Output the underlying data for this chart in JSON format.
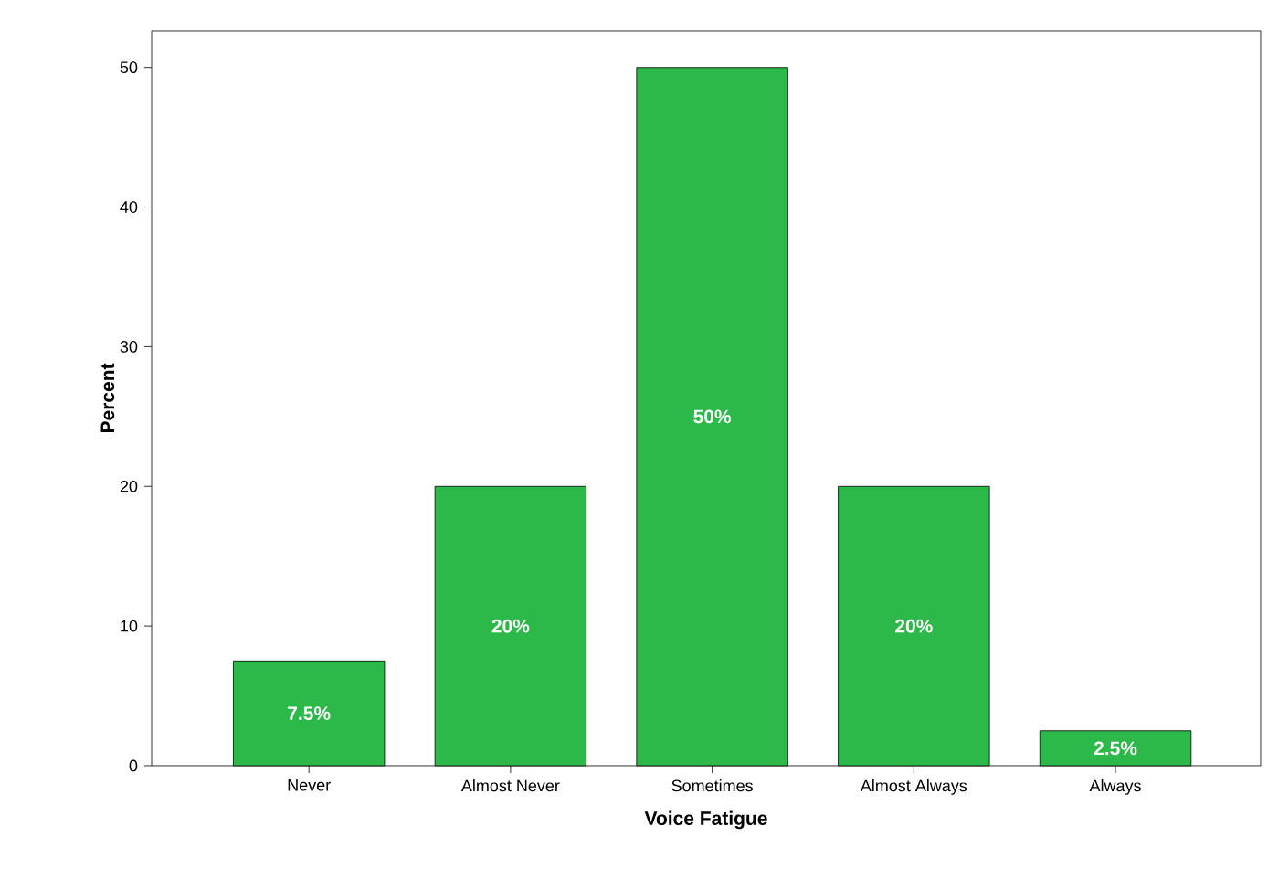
{
  "chart_data": {
    "type": "bar",
    "xlabel": "Voice Fatigue",
    "ylabel": "Percent",
    "categories": [
      "Never",
      "Almost Never",
      "Sometimes",
      "Almost Always",
      "Always"
    ],
    "values": [
      7.5,
      20,
      50,
      20,
      2.5
    ],
    "value_labels": [
      "7.5%",
      "20%",
      "50%",
      "20%",
      "2.5%"
    ],
    "color": "#2db84a",
    "ylim": [
      0,
      52.6
    ],
    "yticks": [
      0,
      10,
      20,
      30,
      40,
      50
    ]
  }
}
